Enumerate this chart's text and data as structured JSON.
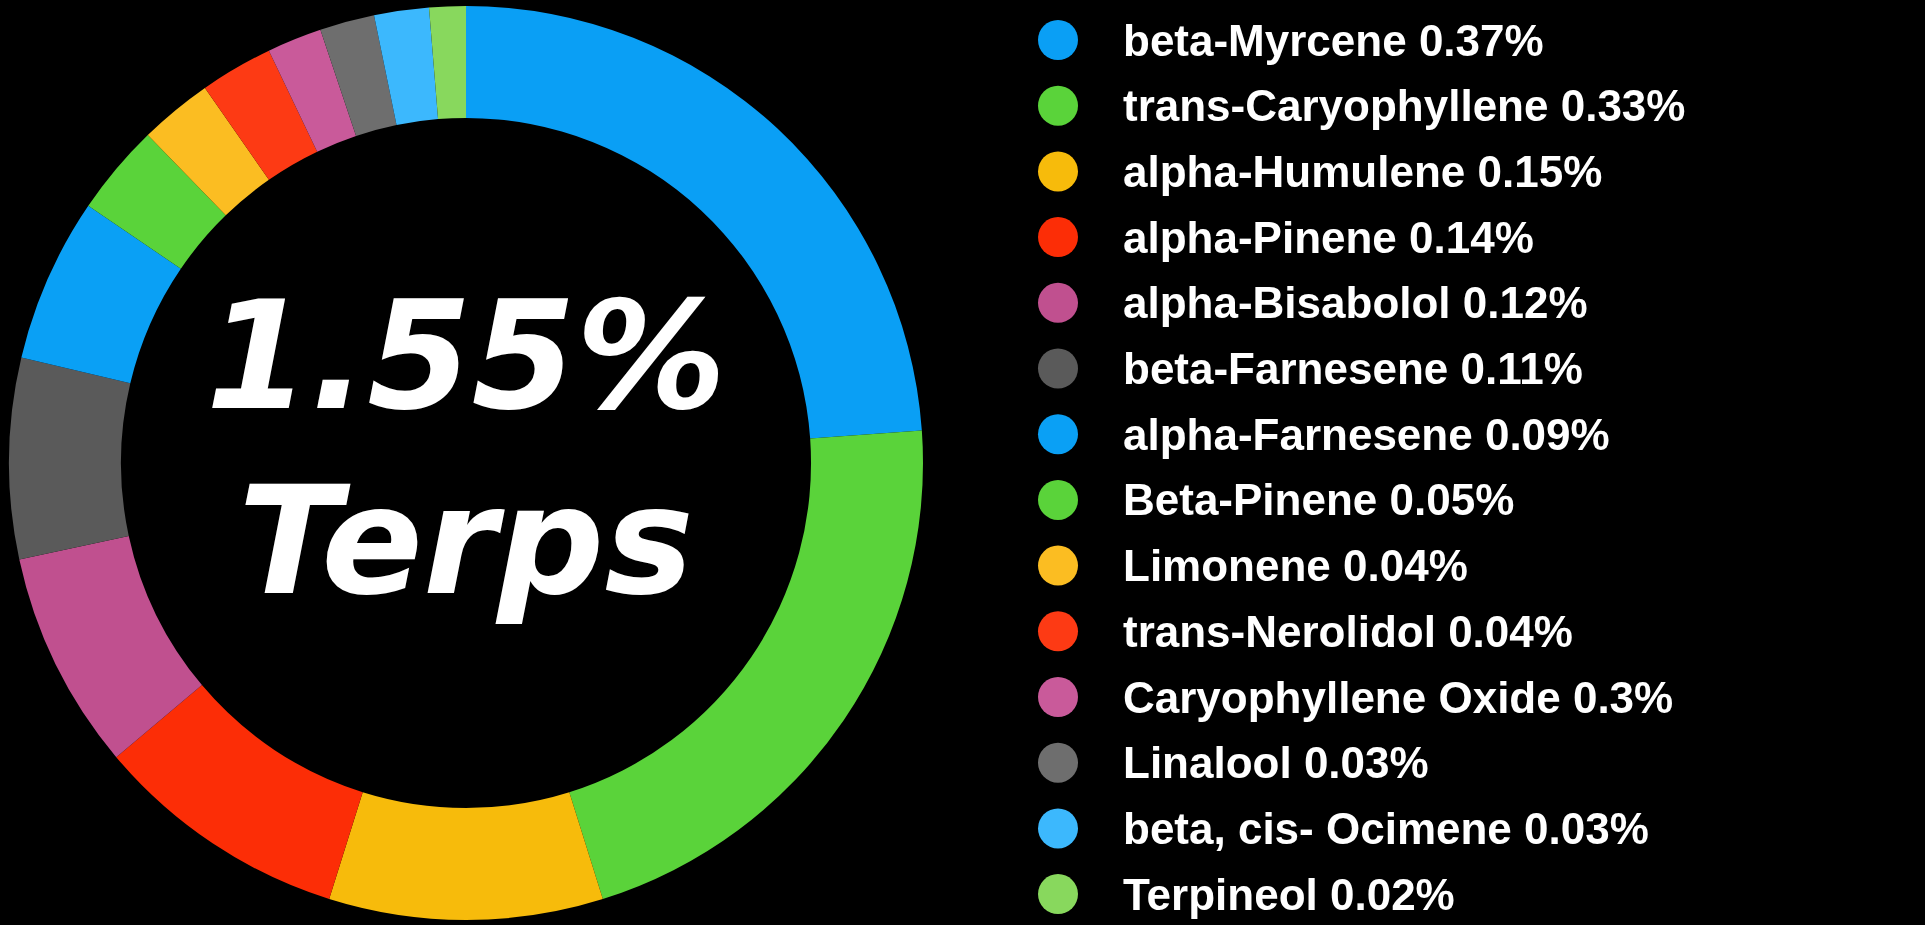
{
  "chart_data": {
    "type": "donut",
    "categories": [
      "beta-Myrcene 0.37%",
      "trans-Caryophyllene 0.33%",
      "alpha-Humulene 0.15%",
      "alpha-Pinene 0.14%",
      "alpha-Bisabolol 0.12%",
      "beta-Farnesene 0.11%",
      "alpha-Farnesene 0.09%",
      "Beta-Pinene 0.05%",
      "Limonene 0.04%",
      "trans-Nerolidol 0.04%",
      "Caryophyllene Oxide 0.3%",
      "Linalool 0.03%",
      "beta, cis- Ocimene 0.03%",
      "Terpineol 0.02%"
    ],
    "values": [
      0.37,
      0.33,
      0.15,
      0.14,
      0.12,
      0.11,
      0.09,
      0.05,
      0.04,
      0.04,
      0.03,
      0.03,
      0.03,
      0.02
    ],
    "colors": [
      "#0a9ff5",
      "#5ad33a",
      "#f7bb0b",
      "#fc2d06",
      "#c0508f",
      "#5a5a5a",
      "#0aa0f5",
      "#5ad33a",
      "#fbbd22",
      "#fd3a14",
      "#c95a9a",
      "#6e6e6e",
      "#3cb8fd",
      "#88d85d"
    ],
    "annotations": [
      "1.55%",
      "Terps"
    ],
    "legend": "right"
  }
}
